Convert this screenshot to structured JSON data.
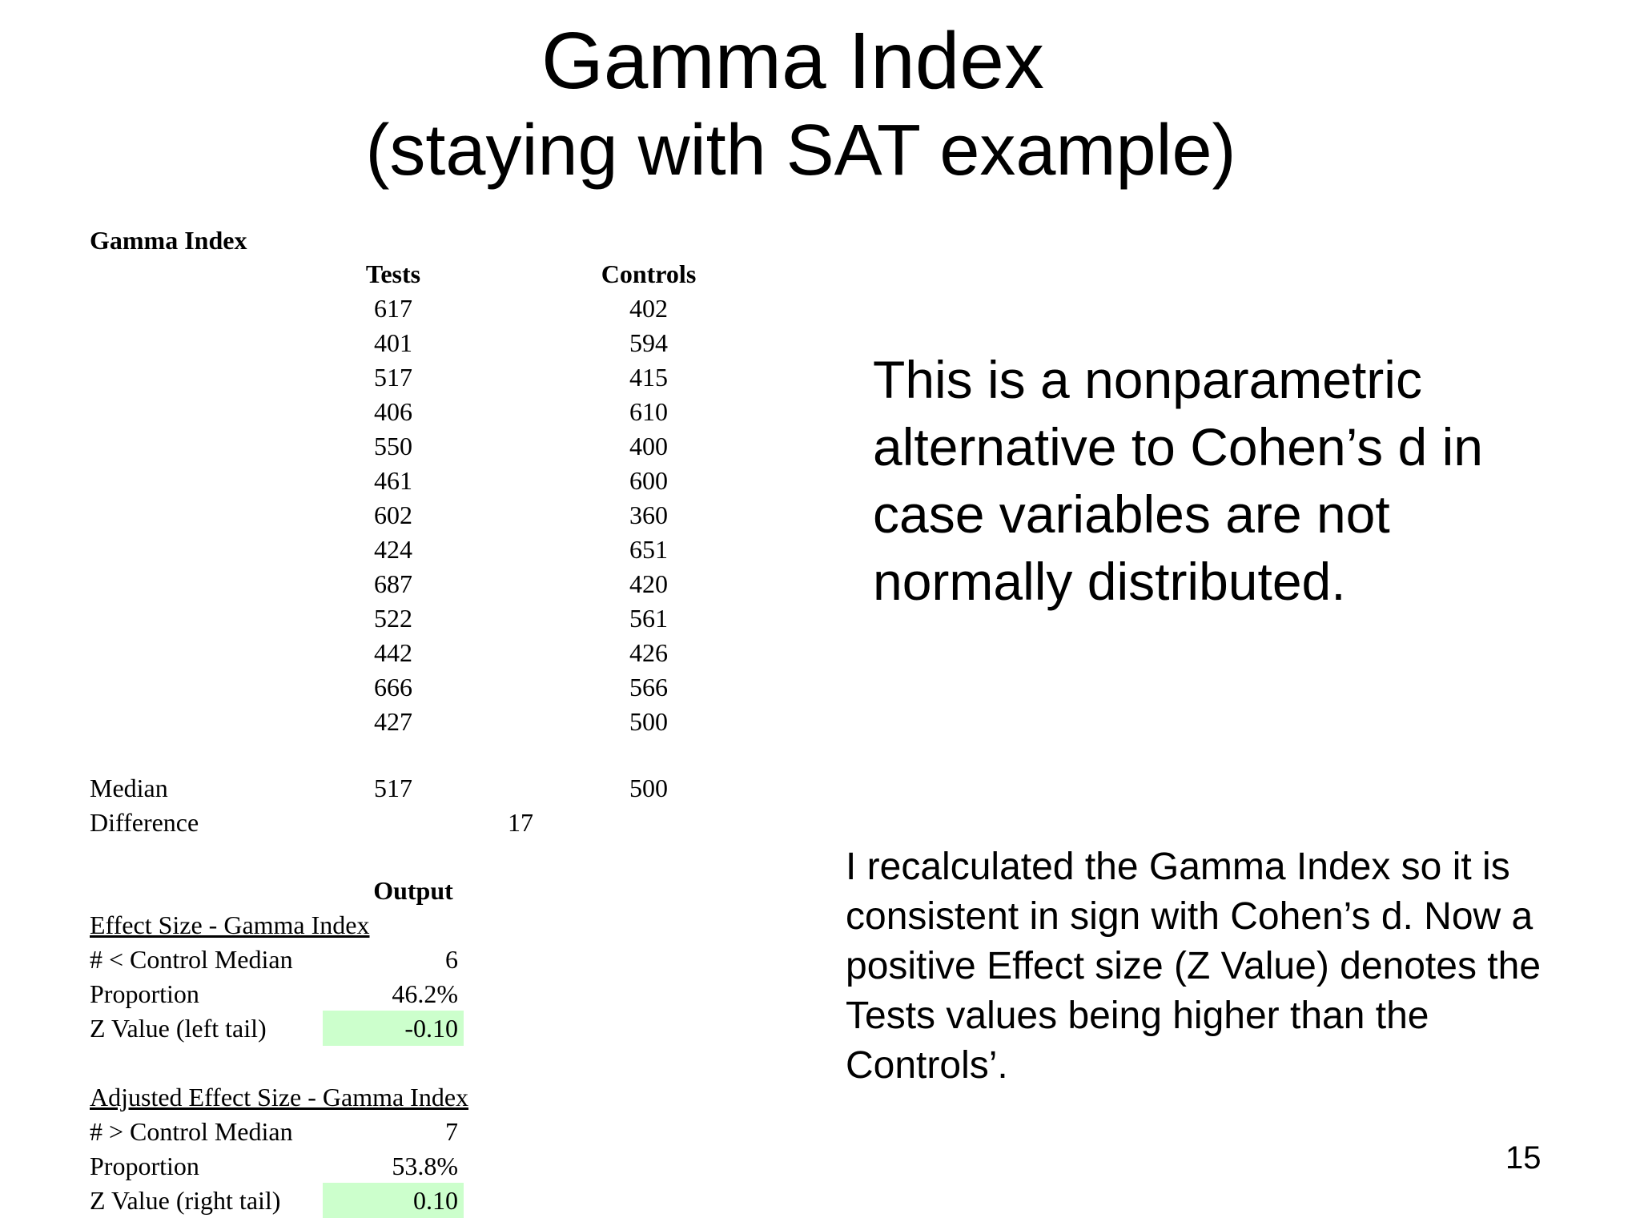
{
  "title": "Gamma Index",
  "subtitle": "(staying with SAT example)",
  "sheet": {
    "heading": "Gamma Index",
    "col_tests": "Tests",
    "col_controls": "Controls",
    "rows": [
      [
        "617",
        "402"
      ],
      [
        "401",
        "594"
      ],
      [
        "517",
        "415"
      ],
      [
        "406",
        "610"
      ],
      [
        "550",
        "400"
      ],
      [
        "461",
        "600"
      ],
      [
        "602",
        "360"
      ],
      [
        "424",
        "651"
      ],
      [
        "687",
        "420"
      ],
      [
        "522",
        "561"
      ],
      [
        "442",
        "426"
      ],
      [
        "666",
        "566"
      ],
      [
        "427",
        "500"
      ]
    ],
    "median_label": "Median",
    "median_tests": "517",
    "median_controls": "500",
    "difference_label": "Difference",
    "difference_value": "17",
    "output_label": "Output",
    "effect": {
      "heading": "Effect Size - Gamma Index",
      "count_label": "# < Control Median",
      "count_value": "6",
      "proportion_label": "Proportion",
      "proportion_value": "46.2%",
      "z_label": "Z Value (left tail)",
      "z_value": "-0.10"
    },
    "adjusted": {
      "heading": "Adjusted Effect Size - Gamma Index",
      "count_label": "# > Control Median",
      "count_value": "7",
      "proportion_label": "Proportion",
      "proportion_value": "53.8%",
      "z_label": "Z Value (right tail)",
      "z_value": "0.10"
    },
    "highlight_color": "#ccffcc"
  },
  "note_primary": "This is a nonparametric alternative to Cohen’s d in case variables are not normally distributed.",
  "note_secondary": "I recalculated the Gamma Index so it is consistent in sign with Cohen’s d.  Now a positive Effect size (Z Value) denotes the Tests values being higher than the Controls’.",
  "page_number": "15"
}
